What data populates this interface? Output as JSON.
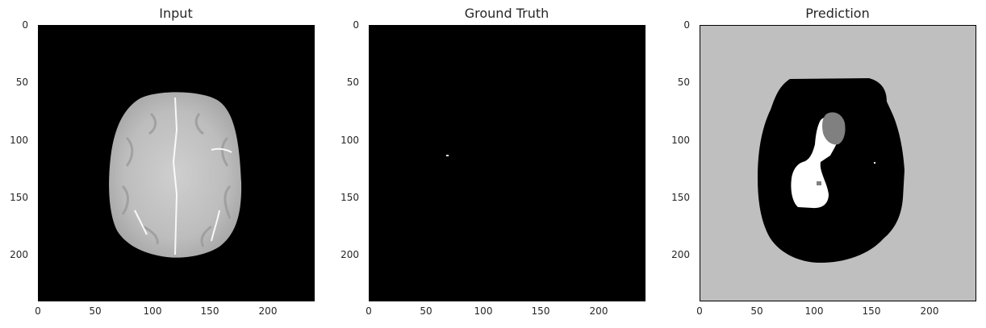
{
  "panels": [
    {
      "title": "Input"
    },
    {
      "title": "Ground Truth"
    },
    {
      "title": "Prediction"
    }
  ],
  "axes": {
    "x_ticks": [
      "0",
      "50",
      "100",
      "150",
      "200"
    ],
    "y_ticks": [
      "0",
      "50",
      "100",
      "150",
      "200"
    ],
    "x_tick_values": [
      0,
      50,
      100,
      150,
      200
    ],
    "y_tick_values": [
      0,
      50,
      100,
      150,
      200
    ],
    "range": [
      0,
      240
    ]
  },
  "colors": {
    "background": "#000000",
    "prediction_bg": "#bfbfbf",
    "brain_gray": "#c8c8c8",
    "lesion_white": "#ffffff",
    "lesion_gray": "#808080"
  }
}
